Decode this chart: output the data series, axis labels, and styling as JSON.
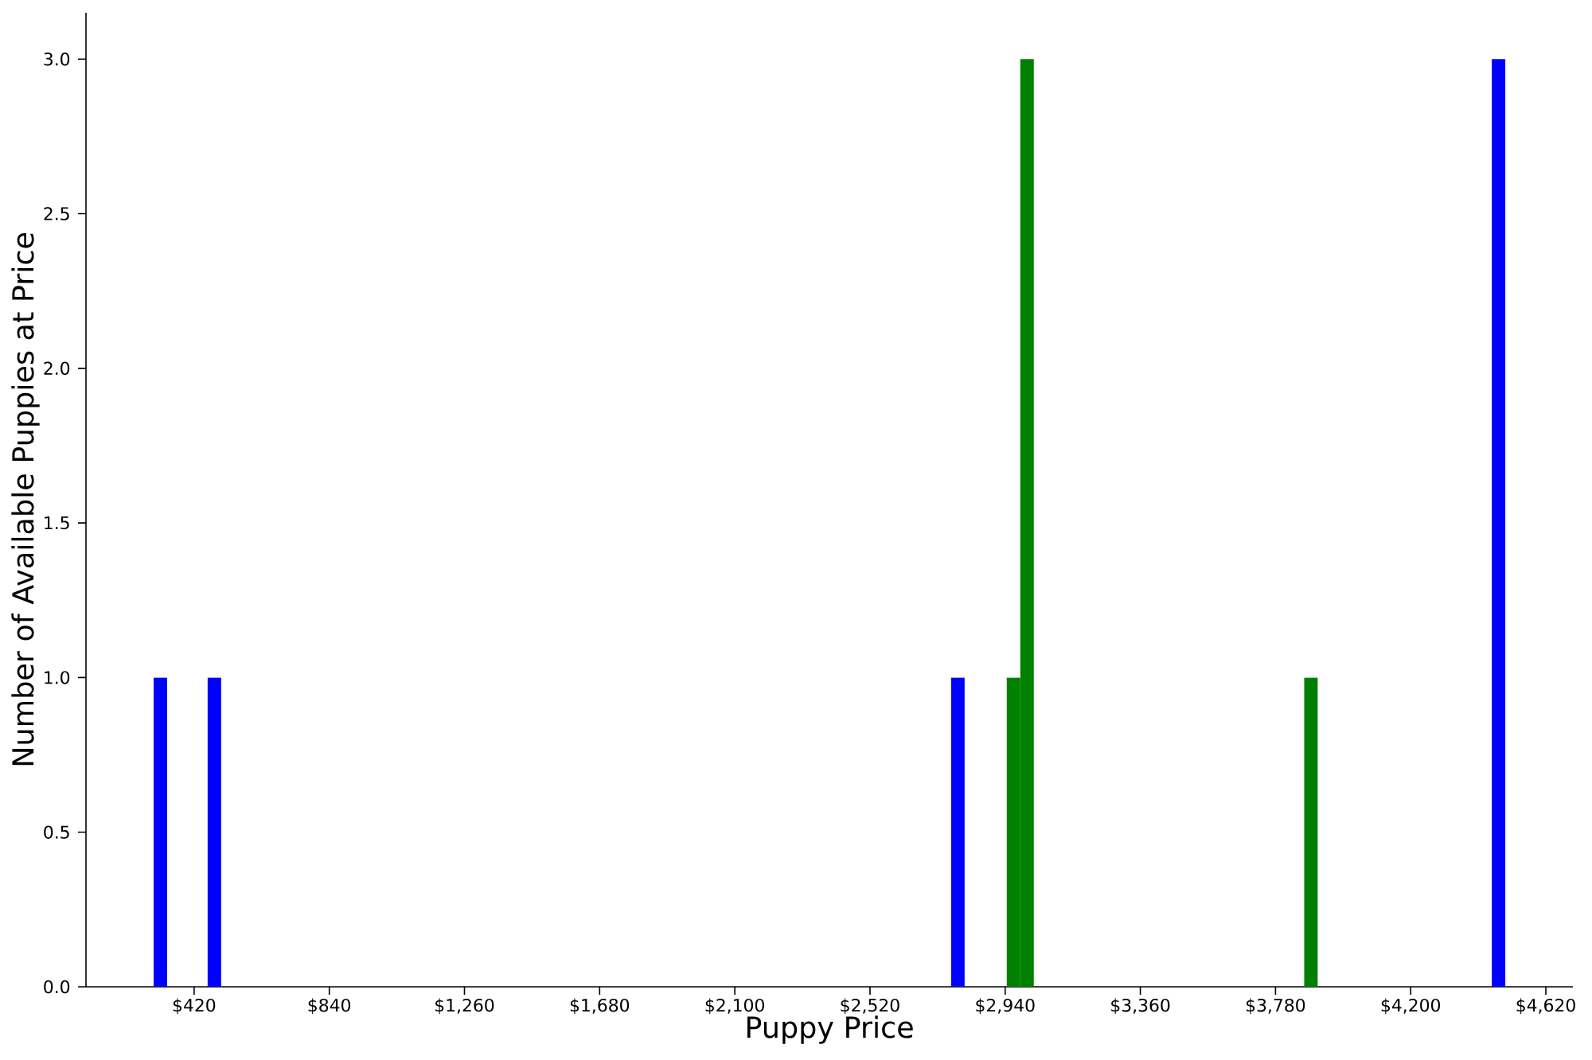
{
  "chart_data": {
    "type": "histogram",
    "xlabel": "Puppy Price",
    "ylabel": "Number of Available Puppies at Price",
    "bins": [
      294,
      336,
      462,
      504,
      2772,
      2814,
      2945,
      2987,
      3029,
      3869,
      3911,
      4452,
      4494
    ],
    "series": [
      {
        "color": "#0000ff",
        "values": [
          1,
          0,
          1,
          0,
          1,
          0,
          0,
          0,
          0,
          0,
          0,
          3
        ]
      },
      {
        "color": "#008000",
        "values": [
          0,
          0,
          0,
          0,
          0,
          0,
          1,
          3,
          0,
          1,
          0,
          0
        ]
      }
    ],
    "xlim": [
      84,
      4704
    ],
    "ylim": [
      0,
      3.15
    ],
    "xticks": [
      {
        "value": 420,
        "label": "$420"
      },
      {
        "value": 840,
        "label": "$840"
      },
      {
        "value": 1260,
        "label": "$1,260"
      },
      {
        "value": 1680,
        "label": "$1,680"
      },
      {
        "value": 2100,
        "label": "$2,100"
      },
      {
        "value": 2520,
        "label": "$2,520"
      },
      {
        "value": 2940,
        "label": "$2,940"
      },
      {
        "value": 3360,
        "label": "$3,360"
      },
      {
        "value": 3780,
        "label": "$3,780"
      },
      {
        "value": 4200,
        "label": "$4,200"
      },
      {
        "value": 4620,
        "label": "$4,620"
      }
    ],
    "yticks": [
      {
        "value": 0,
        "label": "0.0"
      },
      {
        "value": 0.5,
        "label": "0.5"
      },
      {
        "value": 1,
        "label": "1.0"
      },
      {
        "value": 1.5,
        "label": "1.5"
      },
      {
        "value": 2,
        "label": "2.0"
      },
      {
        "value": 2.5,
        "label": "2.5"
      },
      {
        "value": 3,
        "label": "3.0"
      }
    ]
  }
}
